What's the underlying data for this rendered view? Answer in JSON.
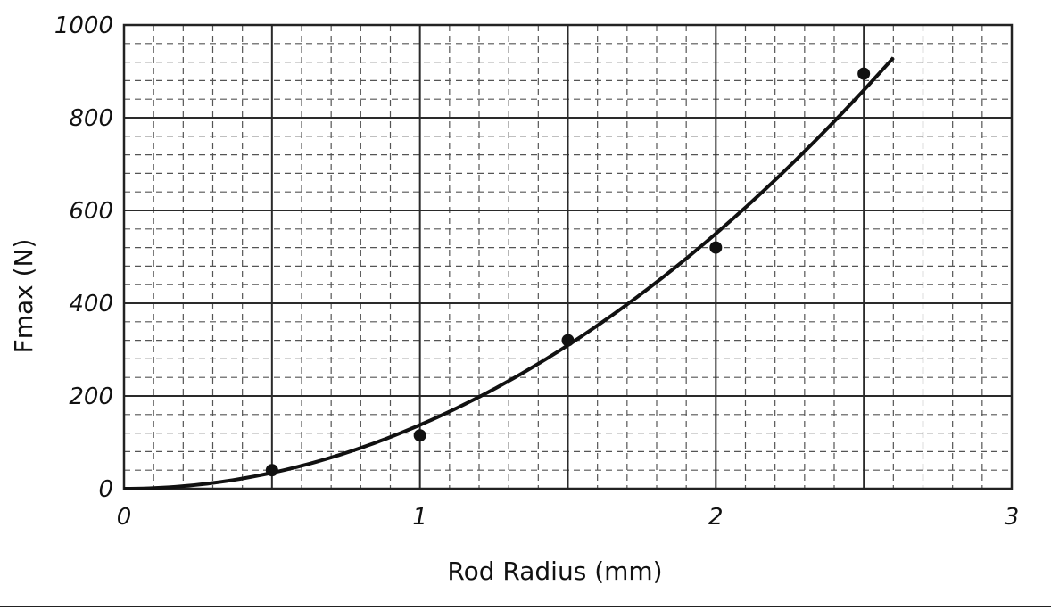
{
  "chart_data": {
    "type": "scatter",
    "title": "",
    "xlabel": "Rod Radius (mm)",
    "ylabel": "Fmax (N)",
    "xlim": [
      0,
      3
    ],
    "ylim": [
      0,
      1000
    ],
    "x_ticks": [
      "0",
      "1",
      "2",
      "3"
    ],
    "y_ticks": [
      "0",
      "200",
      "400",
      "600",
      "800",
      "1000"
    ],
    "grid": true,
    "series": [
      {
        "type": "scatter",
        "points": [
          {
            "x": 0.5,
            "y": 40
          },
          {
            "x": 1.0,
            "y": 115
          },
          {
            "x": 1.5,
            "y": 320
          },
          {
            "x": 2.0,
            "y": 520
          },
          {
            "x": 2.5,
            "y": 895
          }
        ]
      },
      {
        "type": "line",
        "function": "quadratic fit through origin",
        "coefficient": 137.5,
        "x_range": [
          0,
          2.6
        ]
      }
    ],
    "colors": {
      "ink": "#111111",
      "grid_major": "#2a2a2a",
      "grid_minor": "#555555"
    }
  }
}
